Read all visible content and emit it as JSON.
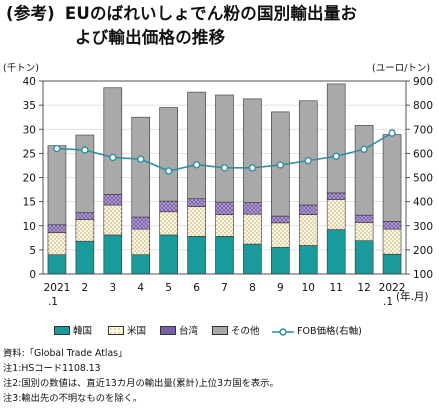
{
  "title": {
    "prefix": "(参考)",
    "line1": "EUのばれいしょでん粉の国別輸出量お",
    "line2": "よび輸出価格の推移"
  },
  "axes": {
    "left_unit": "(千トン)",
    "right_unit": "(ユーロ/トン)",
    "x_unit": "(年.月)"
  },
  "colors": {
    "korea": "#1a9a9a",
    "usa": "#fff6dc",
    "taiwan": "#7b5ea8",
    "other": "#a9a9a9",
    "fob_line": "#2e8fa3"
  },
  "chart_data": {
    "type": "bar",
    "stacked": true,
    "categories": [
      "2021.1",
      "2",
      "3",
      "4",
      "5",
      "6",
      "7",
      "8",
      "9",
      "10",
      "11",
      "12",
      "2022.1"
    ],
    "tick_labels": [
      "2021",
      "2",
      "3",
      "4",
      "5",
      "6",
      "7",
      "8",
      "9",
      "10",
      "11",
      "12",
      "2022"
    ],
    "tick_sublabels": [
      ".1",
      "",
      "",
      "",
      "",
      "",
      "",
      "",
      "",
      "",
      "",
      "",
      ".1"
    ],
    "series": [
      {
        "name": "韓国",
        "values": [
          4.0,
          6.8,
          8.1,
          4.0,
          8.1,
          7.8,
          7.8,
          6.2,
          5.5,
          5.9,
          9.2,
          6.9,
          4.1
        ]
      },
      {
        "name": "米国",
        "values": [
          4.6,
          4.5,
          6.2,
          5.3,
          4.8,
          6.2,
          4.5,
          6.2,
          5.1,
          6.4,
          6.2,
          3.8,
          5.2
        ]
      },
      {
        "name": "台湾",
        "values": [
          1.6,
          1.4,
          2.2,
          2.5,
          2.2,
          1.6,
          2.6,
          2.4,
          1.4,
          2.0,
          1.4,
          1.5,
          1.6
        ]
      },
      {
        "name": "その他",
        "values": [
          16.4,
          16.1,
          22.1,
          20.7,
          19.4,
          22.1,
          22.2,
          21.5,
          21.6,
          21.6,
          22.6,
          18.6,
          18.0
        ]
      }
    ],
    "line_series": {
      "name": "FOB価格(右軸)",
      "axis": "right",
      "values": [
        620,
        614,
        583,
        576,
        527,
        553,
        540,
        540,
        552,
        570,
        588,
        617,
        684
      ]
    },
    "ylim_left": [
      0,
      40
    ],
    "ylim_right": [
      100,
      900
    ],
    "yticks_left": [
      0,
      5,
      10,
      15,
      20,
      25,
      30,
      35,
      40
    ],
    "yticks_right": [
      100,
      200,
      300,
      400,
      500,
      600,
      700,
      800,
      900
    ],
    "legend_position": "bottom"
  },
  "legend": [
    {
      "label": "韓国",
      "key": "korea"
    },
    {
      "label": "米国",
      "key": "usa"
    },
    {
      "label": "台湾",
      "key": "taiwan"
    },
    {
      "label": "その他",
      "key": "other"
    },
    {
      "label": "FOB価格(右軸)",
      "key": "fob_line"
    }
  ],
  "notes": [
    "資料:「Global Trade Atlas」",
    "注1:HSコード1108.13",
    "注2:国別の数値は、直近13カ月の輸出量(累計)上位3カ国を表示。",
    "注3:輸出先の不明なものを除く。"
  ]
}
